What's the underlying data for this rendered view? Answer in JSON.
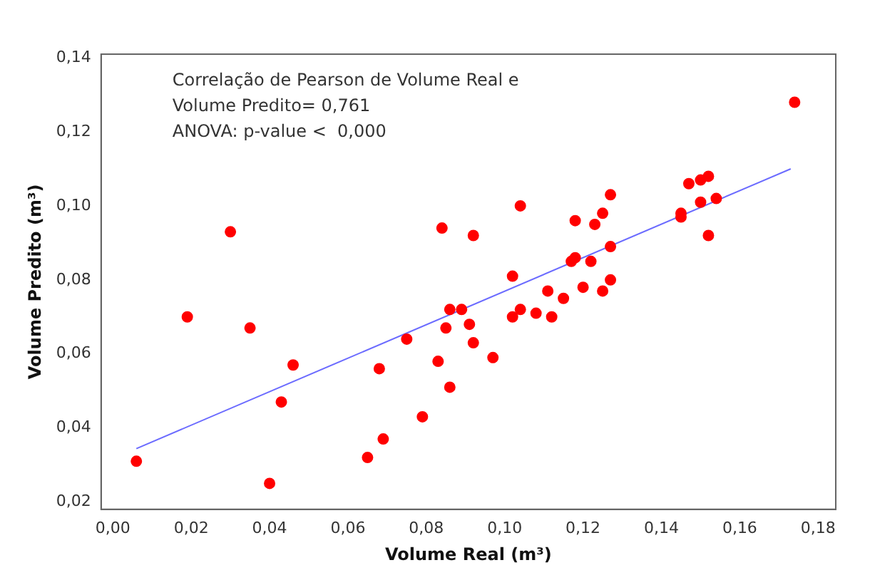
{
  "chart_data": {
    "type": "scatter",
    "xlabel": "Volume Real (m³)",
    "ylabel": "Volume Predito (m³)",
    "annotations": [
      "Correlação de Pearson de Volume Real e",
      "Volume Predito= 0,761",
      "ANOVA: p-value <  0,000"
    ],
    "xlim": [
      -0.003,
      0.1845
    ],
    "ylim": [
      0.018,
      0.141
    ],
    "xticks": [
      {
        "value": 0,
        "label": "0,00"
      },
      {
        "value": 0.02,
        "label": "0,02"
      },
      {
        "value": 0.04,
        "label": "0,04"
      },
      {
        "value": 0.06,
        "label": "0,06"
      },
      {
        "value": 0.08,
        "label": "0,08"
      },
      {
        "value": 0.1,
        "label": "0,10"
      },
      {
        "value": 0.12,
        "label": "0,12"
      },
      {
        "value": 0.14,
        "label": "0,14"
      },
      {
        "value": 0.16,
        "label": "0,16"
      },
      {
        "value": 0.18,
        "label": "0,18"
      }
    ],
    "yticks": [
      {
        "value": 0.02,
        "label": "0,02"
      },
      {
        "value": 0.04,
        "label": "0,04"
      },
      {
        "value": 0.06,
        "label": "0,06"
      },
      {
        "value": 0.08,
        "label": "0,08"
      },
      {
        "value": 0.1,
        "label": "0,10"
      },
      {
        "value": 0.12,
        "label": "0,12"
      },
      {
        "value": 0.14,
        "label": "0,14"
      }
    ],
    "grid": false,
    "legend": false,
    "marker": "circle",
    "series": [
      {
        "color": "#ff0000",
        "x": [
          0.006,
          0.019,
          0.03,
          0.035,
          0.04,
          0.043,
          0.046,
          0.065,
          0.068,
          0.069,
          0.075,
          0.079,
          0.083,
          0.084,
          0.085,
          0.086,
          0.086,
          0.089,
          0.091,
          0.092,
          0.092,
          0.097,
          0.102,
          0.102,
          0.104,
          0.104,
          0.108,
          0.111,
          0.112,
          0.115,
          0.117,
          0.118,
          0.118,
          0.12,
          0.122,
          0.123,
          0.125,
          0.125,
          0.127,
          0.127,
          0.127,
          0.145,
          0.145,
          0.147,
          0.15,
          0.15,
          0.152,
          0.152,
          0.154,
          0.174
        ],
        "values": [
          0.031,
          0.07,
          0.093,
          0.067,
          0.025,
          0.047,
          0.057,
          0.032,
          0.056,
          0.037,
          0.064,
          0.043,
          0.058,
          0.094,
          0.067,
          0.051,
          0.072,
          0.072,
          0.068,
          0.092,
          0.063,
          0.059,
          0.07,
          0.081,
          0.1,
          0.072,
          0.071,
          0.077,
          0.07,
          0.075,
          0.085,
          0.096,
          0.086,
          0.078,
          0.085,
          0.095,
          0.077,
          0.098,
          0.089,
          0.08,
          0.103,
          0.098,
          0.097,
          0.106,
          0.101,
          0.107,
          0.108,
          0.092,
          0.102,
          0.128
        ]
      },
      {
        "type": "line",
        "color": "#6b6bff",
        "marker": "none",
        "x": [
          0.006,
          0.173
        ],
        "values": [
          0.0344,
          0.11
        ]
      }
    ]
  }
}
